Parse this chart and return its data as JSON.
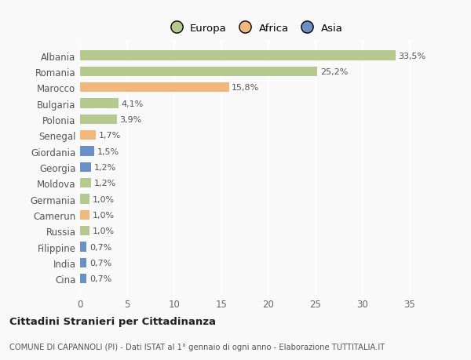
{
  "countries": [
    "Albania",
    "Romania",
    "Marocco",
    "Bulgaria",
    "Polonia",
    "Senegal",
    "Giordania",
    "Georgia",
    "Moldova",
    "Germania",
    "Camerun",
    "Russia",
    "Filippine",
    "India",
    "Cina"
  ],
  "values": [
    33.5,
    25.2,
    15.8,
    4.1,
    3.9,
    1.7,
    1.5,
    1.2,
    1.2,
    1.0,
    1.0,
    1.0,
    0.7,
    0.7,
    0.7
  ],
  "labels": [
    "33,5%",
    "25,2%",
    "15,8%",
    "4,1%",
    "3,9%",
    "1,7%",
    "1,5%",
    "1,2%",
    "1,2%",
    "1,0%",
    "1,0%",
    "1,0%",
    "0,7%",
    "0,7%",
    "0,7%"
  ],
  "continents": [
    "Europa",
    "Europa",
    "Africa",
    "Europa",
    "Europa",
    "Africa",
    "Asia",
    "Asia",
    "Europa",
    "Europa",
    "Africa",
    "Europa",
    "Asia",
    "Asia",
    "Asia"
  ],
  "colors": {
    "Europa": "#b5c98e",
    "Africa": "#f0b87c",
    "Asia": "#6b8fc7"
  },
  "title": "Cittadini Stranieri per Cittadinanza",
  "subtitle": "COMUNE DI CAPANNOLI (PI) - Dati ISTAT al 1° gennaio di ogni anno - Elaborazione TUTTITALIA.IT",
  "xlim": [
    0,
    37
  ],
  "background_color": "#f9f9f9",
  "grid_color": "#ffffff",
  "bar_height": 0.6
}
